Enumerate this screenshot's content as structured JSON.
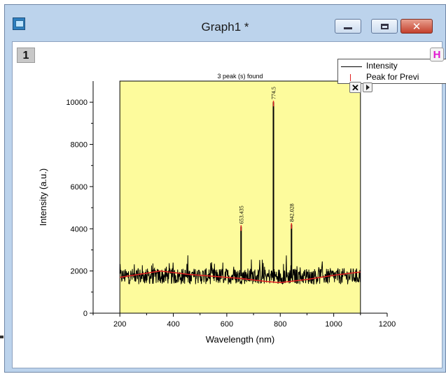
{
  "window": {
    "title": "Graph1 *",
    "layer_number": "1",
    "h_button": "H",
    "close_glyph": "✕"
  },
  "legend": {
    "items": [
      "Intensity",
      "Peak for Previ"
    ]
  },
  "chart_data": {
    "type": "line",
    "title": "3 peak (s) found",
    "xlabel": "Wavelength (nm)",
    "ylabel": "Intensity (a.u.)",
    "xlim": [
      100,
      1200
    ],
    "ylim": [
      0,
      11000
    ],
    "xticks": [
      200,
      400,
      600,
      800,
      1000,
      1200
    ],
    "yticks": [
      0,
      2000,
      4000,
      6000,
      8000,
      10000
    ],
    "plot_range_x": [
      200,
      1100
    ],
    "background_color": "#fdfb9c",
    "series": [
      {
        "name": "Intensity",
        "color": "#000000",
        "baseline": 1750,
        "noise": 380
      },
      {
        "name": "Peak for Previ",
        "color": "#e02020",
        "x": [
          200,
          300,
          350,
          450,
          550,
          650,
          750,
          800,
          900,
          1000,
          1100
        ],
        "y": [
          1700,
          1900,
          2000,
          1850,
          1750,
          1650,
          1500,
          1450,
          1600,
          1800,
          1950
        ]
      }
    ],
    "peaks": [
      {
        "x": 653.435,
        "y": 4100,
        "label": "653.435"
      },
      {
        "x": 774.5,
        "y": 10000,
        "label": "774.5"
      },
      {
        "x": 842.028,
        "y": 4200,
        "label": "842.028"
      }
    ]
  }
}
